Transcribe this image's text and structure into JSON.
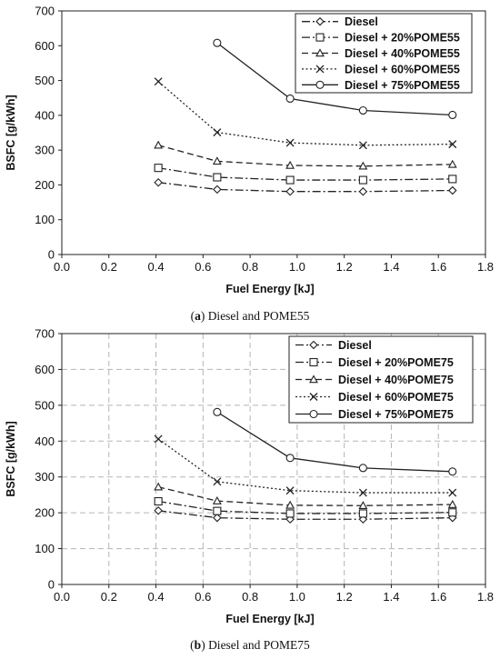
{
  "chart_data": [
    {
      "type": "line",
      "caption_letter": "(a)",
      "caption_text": "Diesel and POME55",
      "xlabel": "Fuel Energy [kJ]",
      "ylabel": "BSFC [g/kWh]",
      "xlim": [
        0,
        1.8
      ],
      "ylim": [
        0,
        700
      ],
      "xticks": [
        "0.0",
        "0.2",
        "0.4",
        "0.6",
        "0.8",
        "1.0",
        "1.2",
        "1.4",
        "1.6",
        "1.8"
      ],
      "yticks": [
        "0",
        "100",
        "200",
        "300",
        "400",
        "500",
        "600",
        "700"
      ],
      "grid": false,
      "legend_position": "top-right",
      "series": [
        {
          "name": "Diesel",
          "marker": "diamond",
          "dash": "dashdot",
          "x": [
            0.41,
            0.66,
            0.97,
            1.28,
            1.66
          ],
          "y": [
            207,
            187,
            181,
            181,
            184
          ]
        },
        {
          "name": "Diesel + 20%POME55",
          "marker": "square",
          "dash": "dashdot",
          "x": [
            0.41,
            0.66,
            0.97,
            1.28,
            1.66
          ],
          "y": [
            249,
            222,
            214,
            214,
            217
          ]
        },
        {
          "name": "Diesel + 40%POME55",
          "marker": "triangle",
          "dash": "dashed",
          "x": [
            0.41,
            0.66,
            0.97,
            1.28,
            1.66
          ],
          "y": [
            314,
            268,
            256,
            254,
            259
          ]
        },
        {
          "name": "Diesel + 60%POME55",
          "marker": "x",
          "dash": "dotted",
          "x": [
            0.41,
            0.66,
            0.97,
            1.28,
            1.66
          ],
          "y": [
            497,
            351,
            321,
            314,
            317
          ]
        },
        {
          "name": "Diesel + 75%POME55",
          "marker": "circle",
          "dash": "solid",
          "x": [
            0.66,
            0.97,
            1.28,
            1.66
          ],
          "y": [
            608,
            448,
            414,
            401
          ]
        }
      ]
    },
    {
      "type": "line",
      "caption_letter": "(b)",
      "caption_text": "Diesel and POME75",
      "xlabel": "Fuel Energy [kJ]",
      "ylabel": "BSFC [g/kWh]",
      "xlim": [
        0,
        1.8
      ],
      "ylim": [
        0,
        700
      ],
      "xticks": [
        "0.0",
        "0.2",
        "0.4",
        "0.6",
        "0.8",
        "1.0",
        "1.2",
        "1.4",
        "1.6",
        "1.8"
      ],
      "yticks": [
        "0",
        "100",
        "200",
        "300",
        "400",
        "500",
        "600",
        "700"
      ],
      "grid": true,
      "legend_position": "top-right",
      "series": [
        {
          "name": "Diesel",
          "marker": "diamond",
          "dash": "dashdot",
          "x": [
            0.41,
            0.66,
            0.97,
            1.28,
            1.66
          ],
          "y": [
            206,
            186,
            182,
            182,
            186
          ]
        },
        {
          "name": "Diesel + 20%POME75",
          "marker": "square",
          "dash": "dashdot",
          "x": [
            0.41,
            0.66,
            0.97,
            1.28,
            1.66
          ],
          "y": [
            232,
            205,
            198,
            198,
            201
          ]
        },
        {
          "name": "Diesel + 40%POME75",
          "marker": "triangle",
          "dash": "dashed",
          "x": [
            0.41,
            0.66,
            0.97,
            1.28,
            1.66
          ],
          "y": [
            272,
            233,
            221,
            220,
            223
          ]
        },
        {
          "name": "Diesel + 60%POME75",
          "marker": "x",
          "dash": "dotted",
          "x": [
            0.41,
            0.66,
            0.97,
            1.28,
            1.66
          ],
          "y": [
            406,
            287,
            262,
            256,
            256
          ]
        },
        {
          "name": "Diesel + 75%POME75",
          "marker": "circle",
          "dash": "solid",
          "x": [
            0.66,
            0.97,
            1.28,
            1.66
          ],
          "y": [
            481,
            353,
            325,
            315
          ]
        }
      ]
    }
  ]
}
